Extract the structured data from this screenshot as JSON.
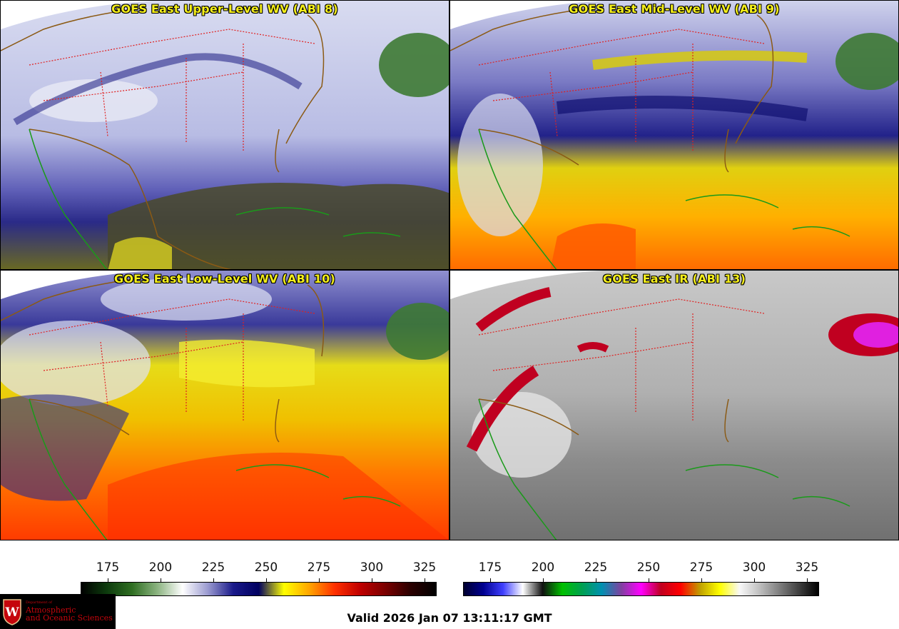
{
  "panels": [
    {
      "id": "upper",
      "title": "GOES East Upper-Level WV (ABI 8)"
    },
    {
      "id": "mid",
      "title": "GOES East Mid-Level WV (ABI 9)"
    },
    {
      "id": "low",
      "title": "GOES East Low-Level WV (ABI 10)"
    },
    {
      "id": "ir",
      "title": "GOES East IR (ABI 13)"
    }
  ],
  "colorbars": {
    "wv": {
      "ticks": [
        "175",
        "200",
        "225",
        "250",
        "275",
        "300",
        "325"
      ],
      "colors": [
        "#000000",
        "#0d3b0d",
        "#2f6e22",
        "#8bb380",
        "#ffffff",
        "#9a9ad0",
        "#1a1a8a",
        "#000060",
        "#ffff00",
        "#ffa500",
        "#ff3000",
        "#c00000",
        "#7a0000",
        "#2a0000",
        "#000000"
      ]
    },
    "ir": {
      "ticks": [
        "175",
        "200",
        "225",
        "250",
        "275",
        "300",
        "325"
      ],
      "colors": [
        "#000030",
        "#000090",
        "#4040ff",
        "#ffffff",
        "#101010",
        "#00c000",
        "#00a050",
        "#0090b0",
        "#8040a0",
        "#ff00ff",
        "#c00020",
        "#ff0000",
        "#c0a000",
        "#ffff00",
        "#f8f8f8",
        "#c0c0c0",
        "#808080",
        "#404040",
        "#000000"
      ]
    }
  },
  "logo": {
    "dept": "Department of",
    "line1": "Atmospheric",
    "line2": "and Oceanic Sciences"
  },
  "valid_time": "Valid 2026 Jan 07 13:11:17 GMT"
}
